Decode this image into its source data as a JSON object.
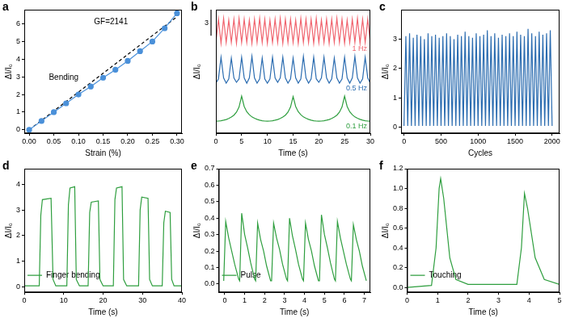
{
  "chart_data": [
    {
      "panel": "a",
      "type": "line",
      "x_label": "Strain (%)",
      "y_label": "ΔI/I₀",
      "annotations": [
        "GF=2141",
        "Bending"
      ],
      "x": [
        0,
        0.025,
        0.05,
        0.075,
        0.1,
        0.125,
        0.15,
        0.175,
        0.2,
        0.225,
        0.25,
        0.275,
        0.3
      ],
      "series": [
        {
          "color": "#4a90d9",
          "marker": "circle",
          "line_style": "solid",
          "values": [
            0,
            0.5,
            1.0,
            1.5,
            2.0,
            2.45,
            2.95,
            3.4,
            3.9,
            4.45,
            5.0,
            5.75,
            6.6
          ]
        },
        {
          "color": "#000000",
          "marker": "none",
          "line_style": "dashed",
          "x": [
            0,
            0.3
          ],
          "values": [
            0,
            6.4
          ]
        }
      ],
      "xlim": [
        -0.01,
        0.31
      ],
      "ylim": [
        -0.2,
        6.8
      ],
      "xticks": [
        {
          "value": 0,
          "label": "0.00"
        },
        0.05,
        {
          "value": 0.1,
          "label": "0.10"
        },
        0.15,
        {
          "value": 0.2,
          "label": "0.20"
        },
        0.25,
        {
          "value": 0.3,
          "label": "0.30"
        }
      ],
      "yticks": [
        0,
        1,
        2,
        3,
        4,
        5,
        6
      ],
      "grid": false
    },
    {
      "panel": "b",
      "type": "line",
      "x_label": "Time (s)",
      "y_label": "ΔI/I₀",
      "scale_bar": {
        "value": 3,
        "label": "3"
      },
      "tick_labels": "x",
      "x": [
        0,
        0.5,
        1,
        1.5,
        2,
        2.5,
        3,
        3.5,
        4,
        4.5,
        5,
        5.5,
        6,
        6.5,
        7,
        7.5,
        8,
        8.5,
        9,
        9.5,
        10,
        10.5,
        11,
        11.5,
        12,
        12.5,
        13,
        13.5,
        14,
        14.5,
        15,
        15.5,
        16,
        16.5,
        17,
        17.5,
        18,
        18.5,
        19,
        19.5,
        20,
        20.5,
        21,
        21.5,
        22,
        22.5,
        23,
        23.5,
        24,
        24.5,
        25,
        25.5,
        26,
        26.5,
        27,
        27.5,
        28,
        28.5,
        29,
        29.5,
        30
      ],
      "series": [
        {
          "name": "1 Hz",
          "color": "#f0646e",
          "marker": "none",
          "line_style": "solid",
          "values": [
            9.7,
            12.4,
            9.6,
            12.5,
            9.7,
            12.3,
            9.7,
            12.4,
            9.6,
            12.5,
            9.7,
            12.4,
            9.7,
            12.3,
            9.6,
            12.4,
            9.7,
            12.5,
            9.7,
            12.4,
            9.6,
            12.3,
            9.7,
            12.4,
            9.7,
            12.5,
            9.6,
            12.4,
            9.7,
            12.4,
            9.7,
            12.3,
            9.6,
            12.5,
            9.7,
            12.4,
            9.7,
            12.4,
            9.6,
            12.5,
            9.7,
            12.3,
            9.7,
            12.4,
            9.6,
            12.4,
            9.7,
            12.5,
            9.7,
            12.4,
            9.6,
            12.3,
            9.7,
            12.4,
            9.7,
            12.5,
            9.6,
            12.4,
            9.7,
            12.4,
            9.7
          ]
        },
        {
          "name": "0.5 Hz",
          "color": "#2b6cb0",
          "marker": "none",
          "line_style": "solid",
          "values": [
            5.0,
            5.5,
            8.0,
            5.6,
            5.0,
            5.5,
            7.9,
            5.6,
            5.1,
            5.5,
            8.0,
            5.6,
            5.0,
            5.6,
            8.1,
            5.6,
            5.0,
            5.5,
            7.9,
            5.5,
            5.0,
            5.5,
            8.0,
            5.6,
            5.1,
            5.6,
            8.0,
            5.6,
            5.0,
            5.5,
            7.9,
            5.6,
            5.0,
            5.5,
            8.1,
            5.6,
            5.0,
            5.5,
            8.0,
            5.5,
            5.1,
            5.6,
            8.0,
            5.6,
            5.0,
            5.5,
            7.9,
            5.6,
            5.0,
            5.5,
            8.0,
            5.6,
            5.0,
            5.6,
            8.1,
            5.6,
            5.0,
            5.5,
            8.0,
            5.6,
            5.0
          ]
        },
        {
          "name": "0.1 Hz",
          "color": "#2e9e3e",
          "marker": "none",
          "line_style": "solid",
          "values": [
            0.6,
            0.62,
            0.66,
            0.72,
            0.8,
            0.92,
            1.08,
            1.3,
            1.65,
            2.25,
            3.5,
            2.3,
            1.7,
            1.35,
            1.1,
            0.95,
            0.82,
            0.72,
            0.66,
            0.62,
            0.6,
            0.62,
            0.66,
            0.72,
            0.8,
            0.92,
            1.08,
            1.3,
            1.65,
            2.25,
            3.45,
            2.3,
            1.7,
            1.35,
            1.1,
            0.95,
            0.82,
            0.72,
            0.66,
            0.62,
            0.6,
            0.62,
            0.66,
            0.72,
            0.8,
            0.92,
            1.08,
            1.3,
            1.65,
            2.25,
            3.5,
            2.3,
            1.7,
            1.35,
            1.1,
            0.95,
            0.82,
            0.72,
            0.66,
            0.62,
            0.6
          ]
        }
      ],
      "xlim": [
        0,
        30
      ],
      "ylim": [
        -0.8,
        13.5
      ],
      "xticks": [
        0,
        5,
        10,
        15,
        20,
        25,
        30
      ],
      "grid": false
    },
    {
      "panel": "c",
      "type": "line",
      "x_label": "Cycles",
      "y_label": "ΔI/I₀",
      "x": [
        0,
        25,
        50,
        75,
        100,
        125,
        150,
        175,
        200,
        225,
        250,
        275,
        300,
        325,
        350,
        375,
        400,
        425,
        450,
        475,
        500,
        525,
        550,
        575,
        600,
        625,
        650,
        675,
        700,
        725,
        750,
        775,
        800,
        825,
        850,
        875,
        900,
        925,
        950,
        975,
        1000,
        1025,
        1050,
        1075,
        1100,
        1125,
        1150,
        1175,
        1200,
        1225,
        1250,
        1275,
        1300,
        1325,
        1350,
        1375,
        1400,
        1425,
        1450,
        1475,
        1500,
        1525,
        1550,
        1575,
        1600,
        1625,
        1650,
        1675,
        1700,
        1725,
        1750,
        1775,
        1800,
        1825,
        1850,
        1875,
        1900,
        1925,
        1950,
        1975,
        2000
      ],
      "series": [
        {
          "color": "#2b6cb0",
          "marker": "none",
          "line_style": "solid",
          "values": [
            0.05,
            3.1,
            0.05,
            3.2,
            0.05,
            3.05,
            0.05,
            3.15,
            0.05,
            3.1,
            0.05,
            3.0,
            0.05,
            3.2,
            0.05,
            3.1,
            0.05,
            3.15,
            0.05,
            3.05,
            0.05,
            3.1,
            0.05,
            3.2,
            0.05,
            3.1,
            0.05,
            3.0,
            0.05,
            3.15,
            0.05,
            3.1,
            0.05,
            3.25,
            0.05,
            3.1,
            0.05,
            3.05,
            0.05,
            3.2,
            0.05,
            3.1,
            0.05,
            3.15,
            0.05,
            3.3,
            0.05,
            3.1,
            0.05,
            3.2,
            0.05,
            3.05,
            0.05,
            3.15,
            0.05,
            3.1,
            0.05,
            3.2,
            0.05,
            3.1,
            0.05,
            3.25,
            0.05,
            3.15,
            0.05,
            3.1,
            0.05,
            3.35,
            0.05,
            3.2,
            0.05,
            3.1,
            0.05,
            3.25,
            0.05,
            3.15,
            0.05,
            3.2,
            0.05,
            3.3,
            0.05
          ]
        }
      ],
      "xlim": [
        -40,
        2100
      ],
      "ylim": [
        -0.2,
        4.0
      ],
      "xticks": [
        0,
        500,
        1000,
        1500,
        2000
      ],
      "yticks": [
        0,
        1,
        2,
        3
      ],
      "grid": false
    },
    {
      "panel": "d",
      "type": "line",
      "x_label": "Time (s)",
      "y_label": "ΔI/I₀",
      "legend": "top right",
      "x": [
        0,
        3.8,
        4.2,
        4.6,
        6.8,
        7.3,
        8,
        10.8,
        11.2,
        11.6,
        12.8,
        13.2,
        14,
        16.2,
        16.6,
        17,
        18.8,
        19.2,
        20,
        22.6,
        23,
        23.4,
        24.8,
        25.2,
        26,
        29,
        29.4,
        29.8,
        31.4,
        31.8,
        32.5,
        35,
        35.4,
        35.8,
        37,
        37.4,
        38,
        40
      ],
      "series": [
        {
          "name": "Finger bending",
          "color": "#2e9e3e",
          "marker": "none",
          "line_style": "solid",
          "values": [
            0.05,
            0.05,
            2.8,
            3.4,
            3.45,
            0.3,
            0.05,
            0.05,
            3.2,
            3.85,
            3.9,
            0.3,
            0.05,
            0.05,
            2.9,
            3.3,
            3.35,
            0.3,
            0.05,
            0.05,
            3.4,
            3.85,
            3.9,
            0.3,
            0.05,
            0.05,
            3.0,
            3.5,
            3.45,
            0.3,
            0.05,
            0.05,
            2.5,
            2.95,
            2.9,
            0.3,
            0.05,
            0.05
          ]
        }
      ],
      "xlim": [
        0,
        40
      ],
      "ylim": [
        -0.2,
        4.6
      ],
      "xticks": [
        0,
        10,
        20,
        30,
        40
      ],
      "yticks": [
        0,
        1,
        2,
        3,
        4
      ],
      "grid": false
    },
    {
      "panel": "e",
      "type": "line",
      "x_label": "Time (s)",
      "y_label": "ΔI/I₀",
      "legend": "top right",
      "x": [
        -0.05,
        0.05,
        0.2,
        0.35,
        0.5,
        0.7,
        0.75,
        0.85,
        1.0,
        1.15,
        1.3,
        1.5,
        1.55,
        1.65,
        1.8,
        1.95,
        2.1,
        2.3,
        2.35,
        2.45,
        2.6,
        2.75,
        2.9,
        3.1,
        3.15,
        3.25,
        3.4,
        3.55,
        3.7,
        3.9,
        3.95,
        4.05,
        4.2,
        4.35,
        4.5,
        4.7,
        4.75,
        4.85,
        5.0,
        5.15,
        5.3,
        5.5,
        5.55,
        5.65,
        5.8,
        5.95,
        6.1,
        6.3,
        6.35,
        6.45,
        6.6,
        6.75,
        6.9,
        7.1
      ],
      "series": [
        {
          "name": "Pulse",
          "color": "#2e9e3e",
          "marker": "none",
          "line_style": "solid",
          "values": [
            0.02,
            0.38,
            0.28,
            0.2,
            0.12,
            0.03,
            0.02,
            0.43,
            0.3,
            0.22,
            0.13,
            0.03,
            0.02,
            0.37,
            0.27,
            0.2,
            0.11,
            0.02,
            0.02,
            0.37,
            0.28,
            0.21,
            0.12,
            0.03,
            0.02,
            0.4,
            0.29,
            0.21,
            0.12,
            0.03,
            0.02,
            0.37,
            0.27,
            0.2,
            0.11,
            0.02,
            0.02,
            0.42,
            0.3,
            0.22,
            0.13,
            0.03,
            0.02,
            0.38,
            0.28,
            0.2,
            0.12,
            0.03,
            0.02,
            0.36,
            0.27,
            0.2,
            0.11,
            0.02
          ]
        }
      ],
      "xlim": [
        -0.3,
        7.3
      ],
      "ylim": [
        -0.05,
        0.7
      ],
      "xticks": [
        0,
        1,
        2,
        3,
        4,
        5,
        6,
        7
      ],
      "yticks": [
        {
          "value": 0,
          "label": "0.0"
        },
        0.1,
        0.2,
        0.3,
        0.4,
        0.5,
        0.6,
        0.7
      ],
      "grid": false
    },
    {
      "panel": "f",
      "type": "line",
      "x_label": "Time (s)",
      "y_label": "ΔI/I₀",
      "legend": "top right",
      "x": [
        0,
        0.8,
        0.95,
        1.05,
        1.1,
        1.2,
        1.4,
        1.6,
        2,
        3.6,
        3.75,
        3.85,
        3.95,
        4.2,
        4.5,
        5
      ],
      "series": [
        {
          "name": "Touching",
          "color": "#2e9e3e",
          "marker": "none",
          "line_style": "solid",
          "values": [
            0.0,
            0.02,
            0.4,
            1.0,
            1.1,
            0.9,
            0.3,
            0.08,
            0.03,
            0.03,
            0.4,
            0.95,
            0.8,
            0.3,
            0.08,
            0.03
          ]
        }
      ],
      "xlim": [
        0,
        5
      ],
      "ylim": [
        -0.05,
        1.2
      ],
      "xticks": [
        0,
        1,
        2,
        3,
        4,
        5
      ],
      "yticks": [
        {
          "value": 0,
          "label": "0.0"
        },
        0.2,
        0.4,
        0.6,
        0.8,
        {
          "value": 1,
          "label": "1.0"
        },
        1.2
      ],
      "grid": false
    }
  ]
}
